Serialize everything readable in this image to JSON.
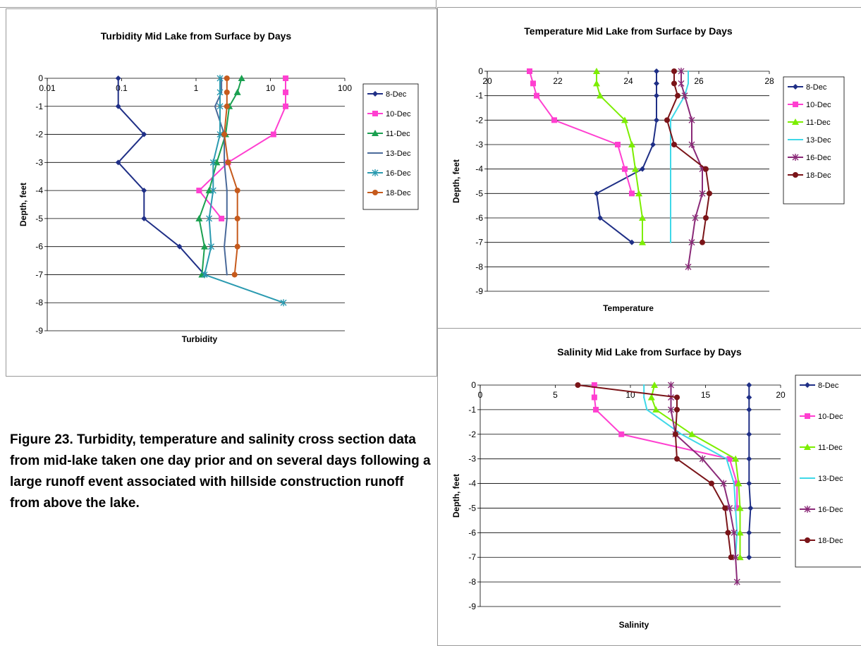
{
  "caption": "Figure 23. Turbidity, temperature and salinity cross section data from mid-lake taken one day prior and on several days following a large runoff event associated with hillside construction runoff from above the lake.",
  "colors": {
    "8-Dec": "#1f2f86",
    "10-Dec": "#ff3fd0",
    "11-Dec": "#7cee00",
    "13-Dec": "#3fd8e8",
    "16-Dec": "#8a2a78",
    "18-Dec": "#7a1418",
    "13-Dec-turb": "#4a6a9a",
    "16-Dec-turb": "#2a9ab0",
    "11-Dec-turb": "#1aa050",
    "18-Dec-turb": "#c65a1c"
  },
  "chart_data": [
    {
      "type": "line",
      "title": "Turbidity Mid Lake from Surface by Days",
      "xlabel": "Turbidity",
      "ylabel": "Depth, feet",
      "xscale": "log",
      "xlim": [
        0.01,
        100
      ],
      "ylim": [
        -9,
        0
      ],
      "xticks": [
        "0.01",
        "0.1",
        "1",
        "10",
        "100"
      ],
      "yticks": [
        "0",
        "-1",
        "-2",
        "-3",
        "-4",
        "-5",
        "-6",
        "-7",
        "-8",
        "-9"
      ],
      "grid": "horizontal",
      "legend": "right",
      "series": [
        {
          "name": "8-Dec",
          "x": [
            0.09,
            0.09,
            0.2,
            0.09,
            0.2,
            0.2,
            0.6,
            1.3
          ],
          "y": [
            0,
            -1,
            -2,
            -3,
            -4,
            -5,
            -6,
            -7
          ]
        },
        {
          "name": "10-Dec",
          "x": [
            16,
            16,
            16,
            11,
            2.7,
            1.1,
            2.2
          ],
          "y": [
            0,
            -0.5,
            -1,
            -2,
            -3,
            -4,
            -5
          ]
        },
        {
          "name": "11-Dec",
          "x": [
            4.1,
            3.6,
            2.8,
            2.5,
            1.9,
            1.5,
            1.1,
            1.3,
            1.2
          ],
          "y": [
            0,
            -0.5,
            -1,
            -2,
            -3,
            -4,
            -5,
            -6,
            -7
          ]
        },
        {
          "name": "13-Dec",
          "x": [
            2.2,
            2.2,
            1.8,
            2.4,
            2.4,
            2.6,
            2.6,
            2.4,
            2.6
          ],
          "y": [
            0,
            -0.5,
            -1,
            -2,
            -3,
            -4,
            -5,
            -6,
            -7
          ]
        },
        {
          "name": "16-Dec",
          "x": [
            2.1,
            2.1,
            2.1,
            2.1,
            1.7,
            1.7,
            1.5,
            1.6,
            1.3,
            15
          ],
          "y": [
            0,
            -0.5,
            -1,
            -2,
            -3,
            -4,
            -5,
            -6,
            -7,
            -8
          ]
        },
        {
          "name": "18-Dec",
          "x": [
            2.6,
            2.6,
            2.6,
            2.4,
            2.7,
            3.6,
            3.6,
            3.6,
            3.3
          ],
          "y": [
            0,
            -0.5,
            -1,
            -2,
            -3,
            -4,
            -5,
            -6,
            -7
          ]
        }
      ]
    },
    {
      "type": "line",
      "title": "Temperature Mid Lake from Surface by Days",
      "xlabel": "Temperature",
      "ylabel": "Depth, feet",
      "xlim": [
        20,
        28
      ],
      "ylim": [
        -9,
        0
      ],
      "xticks": [
        "20",
        "22",
        "24",
        "26",
        "28"
      ],
      "yticks": [
        "0",
        "-1",
        "-2",
        "-3",
        "-4",
        "-5",
        "-6",
        "-7",
        "-8",
        "-9"
      ],
      "grid": "horizontal",
      "legend": "right",
      "series": [
        {
          "name": "8-Dec",
          "x": [
            24.8,
            24.8,
            24.8,
            24.8,
            24.7,
            24.4,
            23.1,
            23.2,
            24.1
          ],
          "y": [
            0,
            -0.5,
            -1,
            -2,
            -3,
            -4,
            -5,
            -6,
            -7
          ]
        },
        {
          "name": "10-Dec",
          "x": [
            21.2,
            21.3,
            21.4,
            21.9,
            23.7,
            23.9,
            24.1
          ],
          "y": [
            0,
            -0.5,
            -1,
            -2,
            -3,
            -4,
            -5
          ]
        },
        {
          "name": "11-Dec",
          "x": [
            23.1,
            23.1,
            23.2,
            23.9,
            24.1,
            24.2,
            24.3,
            24.4,
            24.4
          ],
          "y": [
            0,
            -0.5,
            -1,
            -2,
            -3,
            -4,
            -5,
            -6,
            -7
          ]
        },
        {
          "name": "13-Dec",
          "x": [
            25.7,
            25.7,
            25.6,
            25.2,
            25.2,
            25.2,
            25.2,
            25.2,
            25.2
          ],
          "y": [
            0,
            -0.5,
            -1,
            -2,
            -3,
            -4,
            -5,
            -6,
            -7
          ]
        },
        {
          "name": "16-Dec",
          "x": [
            25.5,
            25.5,
            25.6,
            25.8,
            25.8,
            26.1,
            26.1,
            25.9,
            25.8,
            25.7
          ],
          "y": [
            0,
            -0.5,
            -1,
            -2,
            -3,
            -4,
            -5,
            -6,
            -7,
            -8
          ]
        },
        {
          "name": "18-Dec",
          "x": [
            25.3,
            25.3,
            25.4,
            25.1,
            25.3,
            26.2,
            26.3,
            26.2,
            26.1
          ],
          "y": [
            0,
            -0.5,
            -1,
            -2,
            -3,
            -4,
            -5,
            -6,
            -7
          ]
        }
      ]
    },
    {
      "type": "line",
      "title": "Salinity Mid Lake from Surface by Days",
      "xlabel": "Salinity",
      "ylabel": "Depth, feet",
      "xlim": [
        0,
        20
      ],
      "ylim": [
        -9,
        0
      ],
      "xticks": [
        "0",
        "5",
        "10",
        "15",
        "20"
      ],
      "yticks": [
        "0",
        "-1",
        "-2",
        "-3",
        "-4",
        "-5",
        "-6",
        "-7",
        "-8",
        "-9"
      ],
      "grid": "horizontal",
      "legend": "right",
      "series": [
        {
          "name": "8-Dec",
          "x": [
            17.9,
            17.9,
            17.9,
            17.9,
            17.9,
            17.9,
            18.0,
            17.9,
            17.9
          ],
          "y": [
            0,
            -0.5,
            -1,
            -2,
            -3,
            -4,
            -5,
            -6,
            -7
          ]
        },
        {
          "name": "10-Dec",
          "x": [
            7.6,
            7.6,
            7.7,
            9.4,
            16.6,
            17.1,
            17.1
          ],
          "y": [
            0,
            -0.5,
            -1,
            -2,
            -3,
            -4,
            -5
          ]
        },
        {
          "name": "11-Dec",
          "x": [
            11.6,
            11.4,
            11.7,
            14.1,
            17.0,
            17.2,
            17.3,
            17.3,
            17.3
          ],
          "y": [
            0,
            -0.5,
            -1,
            -2,
            -3,
            -4,
            -5,
            -6,
            -7
          ]
        },
        {
          "name": "13-Dec",
          "x": [
            10.9,
            10.9,
            11.1,
            13.4,
            16.4,
            16.9,
            17.0,
            17.1,
            17.0
          ],
          "y": [
            0,
            -0.5,
            -1,
            -2,
            -3,
            -4,
            -5,
            -6,
            -7
          ]
        },
        {
          "name": "16-Dec",
          "x": [
            12.7,
            12.7,
            12.7,
            13.0,
            14.8,
            16.2,
            16.6,
            16.9,
            17.0,
            17.1
          ],
          "y": [
            0,
            -0.5,
            -1,
            -2,
            -3,
            -4,
            -5,
            -6,
            -7,
            -8
          ]
        },
        {
          "name": "18-Dec",
          "x": [
            6.5,
            13.1,
            13.1,
            13.0,
            13.1,
            15.4,
            16.3,
            16.5,
            16.7
          ],
          "y": [
            0,
            -0.5,
            -1,
            -2,
            -3,
            -4,
            -5,
            -6,
            -7
          ]
        }
      ]
    }
  ]
}
